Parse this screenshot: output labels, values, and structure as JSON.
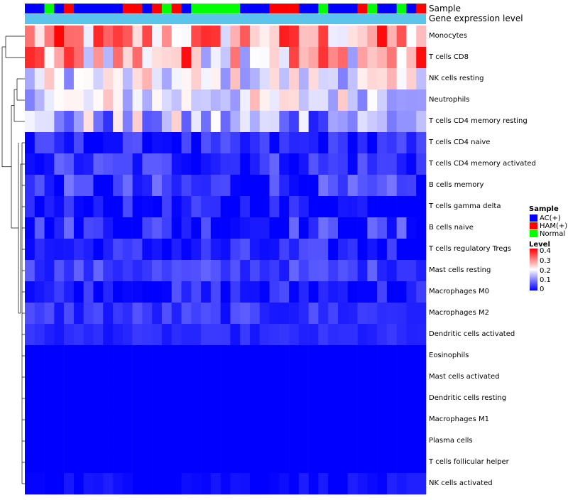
{
  "chart_data": {
    "type": "heatmap",
    "title": "",
    "annotations": [
      {
        "name": "Sample",
        "label": "Sample"
      },
      {
        "name": "Gene expression level",
        "label": "Gene expression level",
        "color": "#5bc4ea"
      }
    ],
    "sample_groups": [
      "AC",
      "AC",
      "Normal",
      "AC",
      "HAM",
      "AC",
      "AC",
      "AC",
      "AC",
      "AC",
      "HAM",
      "HAM",
      "AC",
      "HAM",
      "Normal",
      "HAM",
      "AC",
      "Normal",
      "Normal",
      "Normal",
      "Normal",
      "Normal",
      "AC",
      "AC",
      "AC",
      "HAM",
      "HAM",
      "HAM",
      "AC",
      "AC",
      "Normal",
      "AC",
      "AC",
      "AC",
      "HAM",
      "Normal",
      "AC",
      "AC",
      "Normal",
      "AC",
      "HAM"
    ],
    "group_colors": {
      "AC": "#0000ff",
      "HAM": "#ff0000",
      "Normal": "#00ff00"
    },
    "rows": [
      "Monocytes",
      "T cells CD8",
      "NK cells resting",
      "Neutrophils",
      "T cells CD4 memory resting",
      "T cells CD4 naive",
      "T cells CD4 memory activated",
      "B cells memory",
      "T cells gamma delta",
      "B cells naive",
      "T cells regulatory  Tregs",
      "Mast cells resting",
      "Macrophages M0",
      "Macrophages M2",
      "Dendritic cells activated",
      "Eosinophils",
      "Mast cells activated",
      "Dendritic cells resting",
      "Macrophages M1",
      "Plasma cells",
      "T cells follicular helper",
      "NK cells activated"
    ],
    "row_means": [
      0.27,
      0.26,
      0.18,
      0.18,
      0.13,
      0.02,
      0.04,
      0.03,
      0.01,
      0.03,
      0.02,
      0.05,
      0.02,
      0.04,
      0.03,
      0.0,
      0.0,
      0.0,
      0.0,
      0.0,
      0.0,
      0.01
    ],
    "row_spread": [
      0.08,
      0.09,
      0.05,
      0.05,
      0.07,
      0.03,
      0.03,
      0.04,
      0.03,
      0.04,
      0.03,
      0.02,
      0.03,
      0.02,
      0.01,
      0.0,
      0.0,
      0.0,
      0.0,
      0.0,
      0.0,
      0.01
    ],
    "n_samples": 41,
    "color_scale": {
      "min": 0,
      "max": 0.4,
      "low": "#0000ff",
      "mid": "#ffffff",
      "high": "#ff0000",
      "mid_value": 0.2
    },
    "legends": {
      "sample_title": "Sample",
      "sample_items": [
        {
          "label": "AC(+)",
          "color": "#0000ff"
        },
        {
          "label": "HAM(+)",
          "color": "#ff0000"
        },
        {
          "label": "Normal",
          "color": "#00ff00"
        }
      ],
      "level_title": "Level",
      "level_ticks": [
        {
          "label": "0.4",
          "value": 0.4
        },
        {
          "label": "0.3",
          "value": 0.3
        },
        {
          "label": "0.2",
          "value": 0.2
        },
        {
          "label": "0.1",
          "value": 0.1
        },
        {
          "label": "0",
          "value": 0
        }
      ]
    }
  }
}
